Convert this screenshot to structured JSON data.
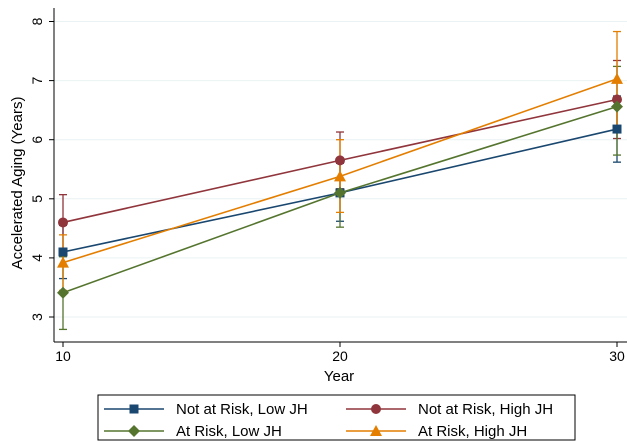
{
  "chart_data": {
    "type": "line",
    "xlabel": "Year",
    "ylabel": "Accelerated Aging (Years)",
    "xlim": [
      10,
      30
    ],
    "ylim": [
      2.6,
      8.2
    ],
    "x_ticks": [
      10,
      20,
      30
    ],
    "y_ticks": [
      3,
      4,
      5,
      6,
      7,
      8
    ],
    "grid": true,
    "legend_position": "bottom",
    "x": [
      10,
      20,
      30
    ],
    "series": [
      {
        "name": "Not at Risk, Low JH",
        "color": "#1a476f",
        "marker": "square",
        "values": [
          4.1,
          5.1,
          6.18
        ],
        "ci_low": [
          3.65,
          4.62,
          5.62
        ],
        "ci_high": [
          4.55,
          5.6,
          6.74
        ]
      },
      {
        "name": "Not at Risk, High JH",
        "color": "#90353b",
        "marker": "circle",
        "values": [
          4.6,
          5.65,
          6.68
        ],
        "ci_low": [
          4.12,
          5.17,
          6.02
        ],
        "ci_high": [
          5.07,
          6.13,
          7.34
        ]
      },
      {
        "name": "At Risk, Low JH",
        "color": "#55752f",
        "marker": "diamond",
        "values": [
          3.41,
          5.1,
          6.56
        ],
        "ci_low": [
          2.79,
          4.52,
          5.74
        ],
        "ci_high": [
          4.02,
          5.69,
          7.24
        ]
      },
      {
        "name": "At Risk, High JH",
        "color": "#e37e00",
        "marker": "triangle",
        "values": [
          3.92,
          5.38,
          7.03
        ],
        "ci_low": [
          3.45,
          4.77,
          6.23
        ],
        "ci_high": [
          4.39,
          6.0,
          7.83
        ]
      }
    ]
  }
}
